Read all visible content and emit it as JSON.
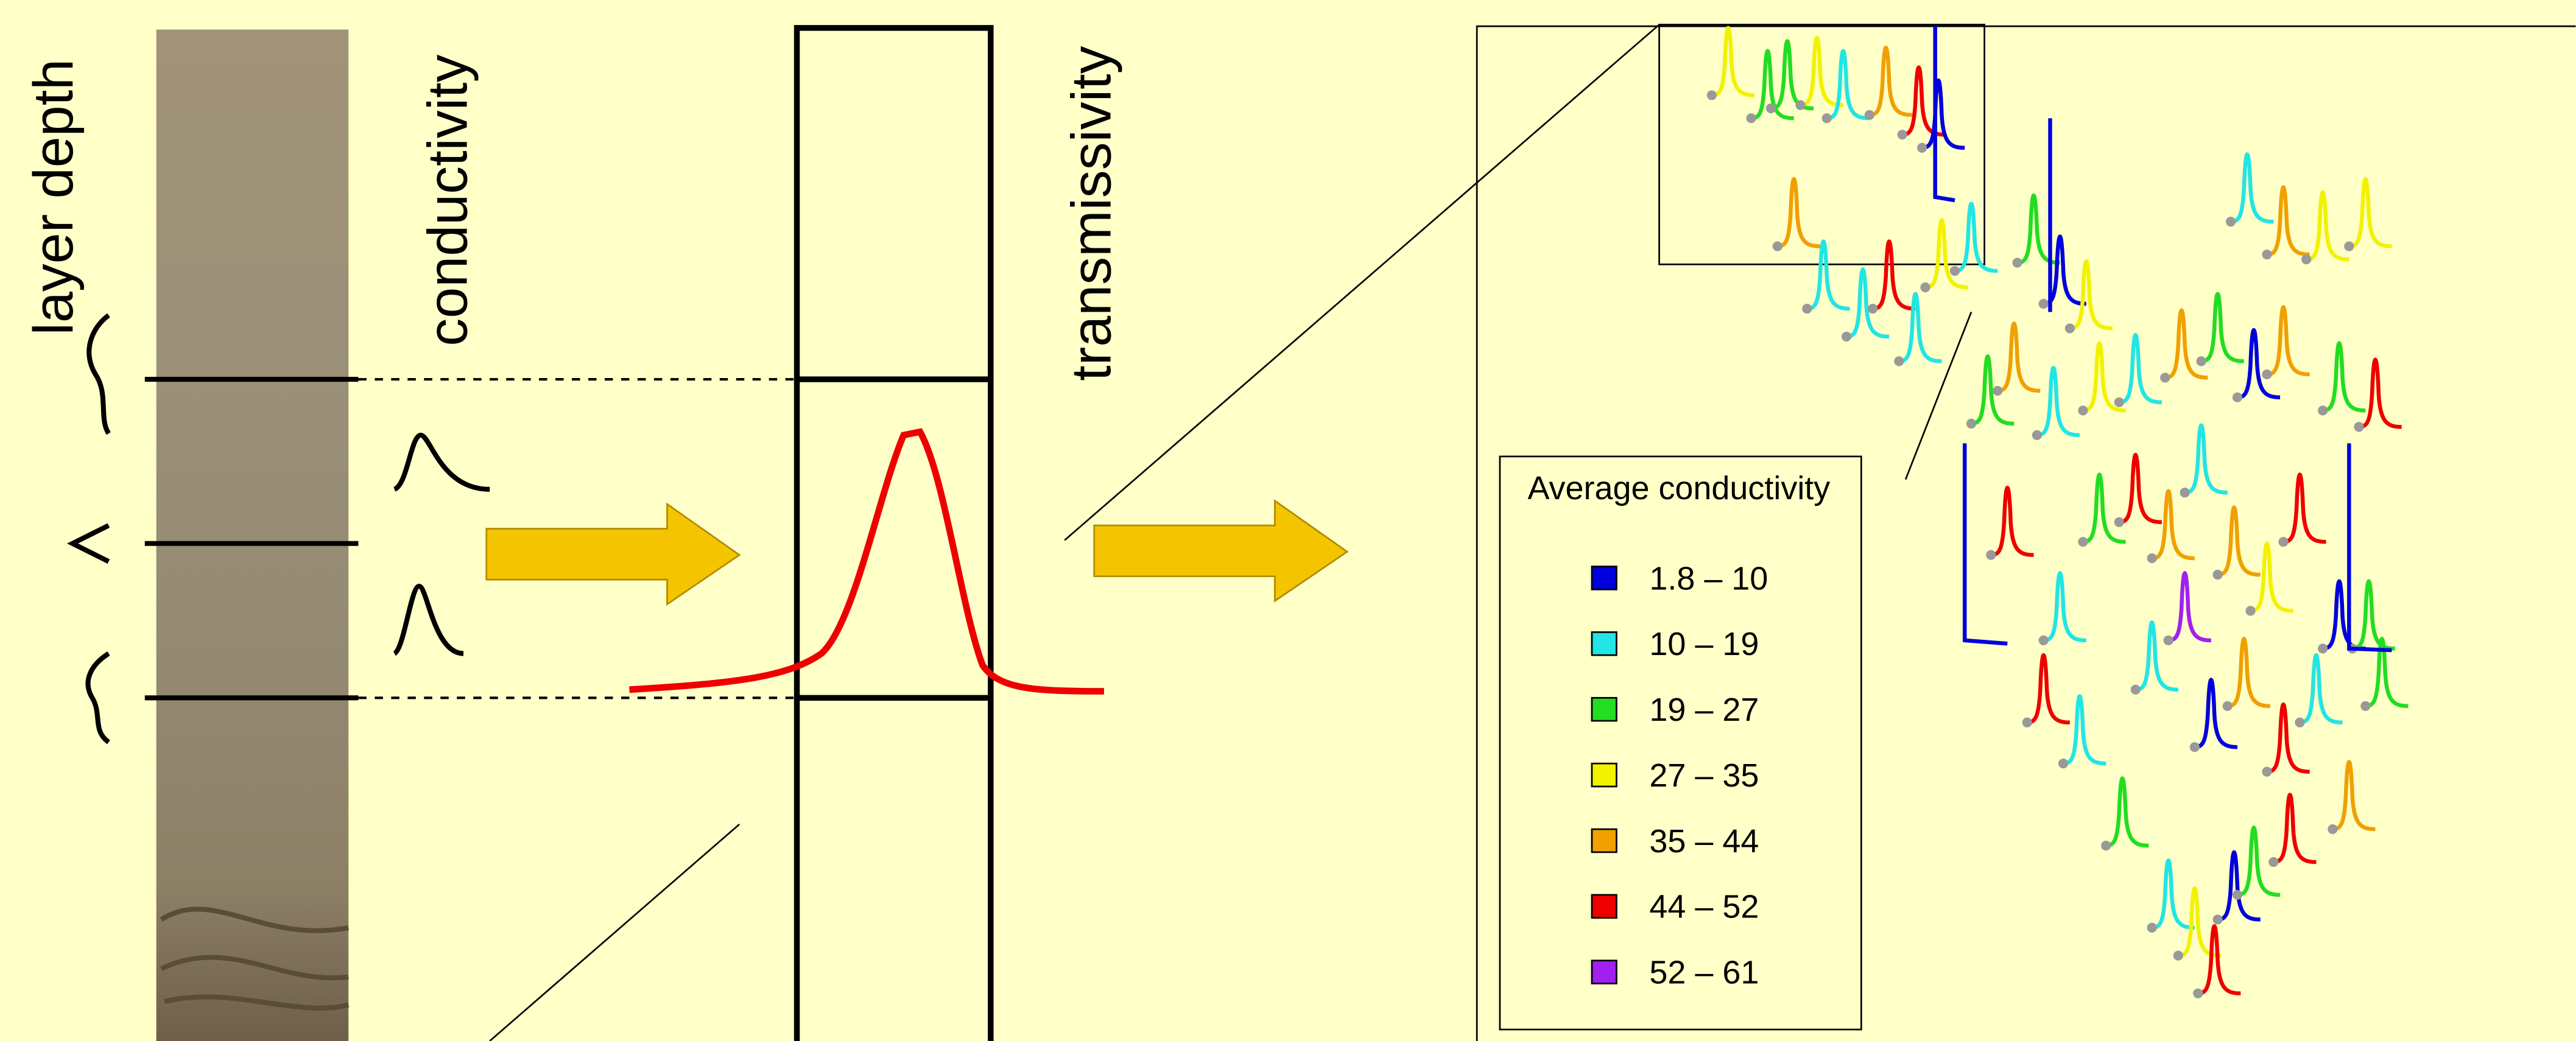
{
  "labels": {
    "layer_depth": "layer depth",
    "conductivity": "conductivity",
    "transmissivity": "transmissivity"
  },
  "legend": {
    "title": "Average conductivity",
    "items": [
      {
        "label": "1.8 – 10",
        "color": "#0000dd"
      },
      {
        "label": "10 – 19",
        "color": "#22e5e5"
      },
      {
        "label": "19 – 27",
        "color": "#22dd22"
      },
      {
        "label": "27 – 35",
        "color": "#f2f200"
      },
      {
        "label": "35 – 44",
        "color": "#f0a000"
      },
      {
        "label": "44 – 52",
        "color": "#ee0000"
      },
      {
        "label": "52 – 61",
        "color": "#a020f0"
      }
    ]
  }
}
